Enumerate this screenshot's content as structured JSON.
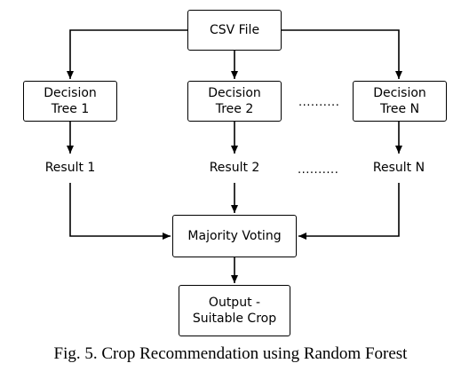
{
  "nodes": {
    "csv": "CSV File",
    "tree1": [
      "Decision",
      "Tree 1"
    ],
    "tree2": [
      "Decision",
      "Tree 2"
    ],
    "treeN": [
      "Decision",
      "Tree N"
    ],
    "voting": "Majority Voting",
    "output": [
      "Output -",
      "Suitable Crop"
    ]
  },
  "results": [
    "Result 1",
    "Result 2",
    "Result N"
  ],
  "ellipsis_top": "..........",
  "ellipsis_mid": "..........",
  "caption": "Fig. 5. Crop Recommendation using Random Forest"
}
